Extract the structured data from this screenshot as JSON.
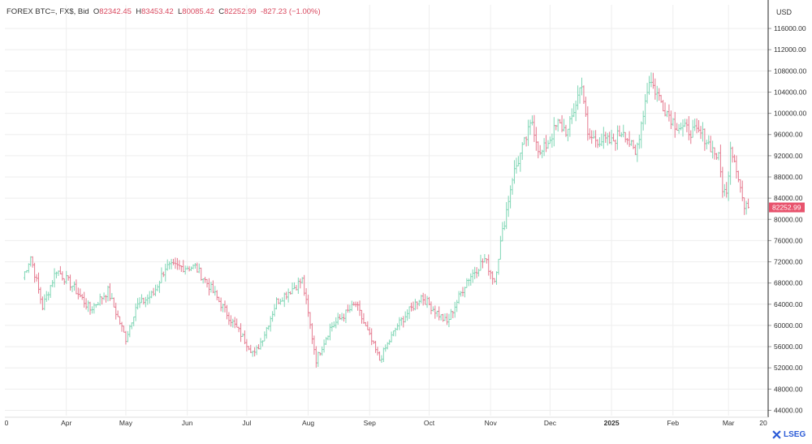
{
  "legend": {
    "symbol": "FOREX BTC=, FX$, Bid",
    "o_label": "O",
    "o_value": "82342.45",
    "h_label": "H",
    "h_value": "83453.42",
    "l_label": "L",
    "l_value": "80085.42",
    "c_label": "C",
    "c_value": "82252.99",
    "change": "-827.23 (−1.00%)"
  },
  "unit": "USD",
  "logo": "LSEG",
  "colors": {
    "up": "#26a69a",
    "up_light": "#7fd6b5",
    "down": "#e57a8f",
    "last_price_bg": "#e8536d",
    "grid": "#eeeeee"
  },
  "chart_data": {
    "type": "ohlc-bar",
    "title": "",
    "xlabel": "",
    "ylabel": "USD",
    "ylim": [
      43000,
      118000
    ],
    "y_ticks": [
      "116000.00",
      "112000.00",
      "108000.00",
      "104000.00",
      "100000.00",
      "96000.00",
      "92000.00",
      "88000.00",
      "84000.00",
      "80000.00",
      "76000.00",
      "72000.00",
      "68000.00",
      "64000.00",
      "60000.00",
      "56000.00",
      "52000.00",
      "48000.00",
      "44000.00"
    ],
    "x_ticks": [
      "0",
      "Apr",
      "May",
      "Jun",
      "Jul",
      "Aug",
      "Sep",
      "Oct",
      "Nov",
      "Dec",
      "2025",
      "Feb",
      "Mar",
      "20"
    ],
    "last_price": "82252.99",
    "anchors": [
      [
        "2024-03-10",
        69000
      ],
      [
        "2024-03-14",
        73000
      ],
      [
        "2024-03-20",
        63500
      ],
      [
        "2024-03-27",
        70500
      ],
      [
        "2024-04-04",
        67500
      ],
      [
        "2024-04-13",
        63000
      ],
      [
        "2024-04-22",
        66500
      ],
      [
        "2024-05-01",
        57500
      ],
      [
        "2024-05-06",
        63500
      ],
      [
        "2024-05-15",
        66000
      ],
      [
        "2024-05-21",
        71000
      ],
      [
        "2024-06-05",
        71000
      ],
      [
        "2024-06-12",
        67500
      ],
      [
        "2024-06-24",
        60500
      ],
      [
        "2024-07-05",
        54500
      ],
      [
        "2024-07-10",
        58500
      ],
      [
        "2024-07-16",
        64500
      ],
      [
        "2024-07-29",
        68500
      ],
      [
        "2024-08-05",
        53500
      ],
      [
        "2024-08-12",
        59500
      ],
      [
        "2024-08-25",
        64000
      ],
      [
        "2024-09-06",
        53500
      ],
      [
        "2024-09-15",
        60000
      ],
      [
        "2024-09-27",
        65500
      ],
      [
        "2024-10-10",
        60500
      ],
      [
        "2024-10-20",
        68500
      ],
      [
        "2024-10-29",
        72500
      ],
      [
        "2024-11-03",
        68500
      ],
      [
        "2024-11-06",
        75500
      ],
      [
        "2024-11-12",
        88000
      ],
      [
        "2024-11-22",
        98500
      ],
      [
        "2024-11-26",
        92000
      ],
      [
        "2024-12-05",
        98000
      ],
      [
        "2024-12-10",
        96500
      ],
      [
        "2024-12-17",
        106000
      ],
      [
        "2024-12-20",
        95500
      ],
      [
        "2024-12-26",
        95000
      ],
      [
        "2025-01-01",
        94500
      ],
      [
        "2025-01-07",
        97000
      ],
      [
        "2025-01-13",
        92000
      ],
      [
        "2025-01-20",
        106500
      ],
      [
        "2025-01-27",
        101500
      ],
      [
        "2025-02-02",
        98000
      ],
      [
        "2025-02-07",
        97000
      ],
      [
        "2025-02-16",
        96000
      ],
      [
        "2025-02-24",
        91500
      ],
      [
        "2025-02-26",
        86000
      ],
      [
        "2025-02-28",
        84500
      ],
      [
        "2025-03-02",
        94000
      ],
      [
        "2025-03-05",
        90000
      ],
      [
        "2025-03-09",
        82000
      ],
      [
        "2025-03-11",
        82253
      ]
    ]
  }
}
